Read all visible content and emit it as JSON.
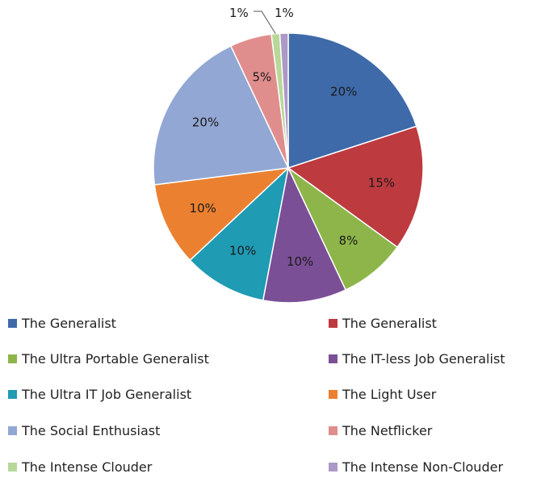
{
  "chart_data": {
    "type": "pie",
    "title": "",
    "slices": [
      {
        "label": "The Generalist",
        "value": 20,
        "value_label": "20%",
        "color": "#3f6aaa"
      },
      {
        "label": "The Generalist",
        "value": 15,
        "value_label": "15%",
        "color": "#bd3a3f"
      },
      {
        "label": "The Ultra Portable Generalist",
        "value": 8,
        "value_label": "8%",
        "color": "#8db54a"
      },
      {
        "label": "The IT-less Job Generalist",
        "value": 10,
        "value_label": "10%",
        "color": "#7b4f96"
      },
      {
        "label": "The Ultra IT Job Generalist",
        "value": 10,
        "value_label": "10%",
        "color": "#1f9bb4"
      },
      {
        "label": "The Light User",
        "value": 10,
        "value_label": "10%",
        "color": "#eb8130"
      },
      {
        "label": "The Social Enthusiast",
        "value": 20,
        "value_label": "20%",
        "color": "#92a7d3"
      },
      {
        "label": "The Netflicker",
        "value": 5,
        "value_label": "5%",
        "color": "#e08e8d"
      },
      {
        "label": "The Intense Clouder",
        "value": 1,
        "value_label": "1%",
        "color": "#b8d898"
      },
      {
        "label": "The Intense Non-Clouder",
        "value": 1,
        "value_label": "1%",
        "color": "#ac99c6"
      }
    ],
    "legend_position": "bottom"
  }
}
